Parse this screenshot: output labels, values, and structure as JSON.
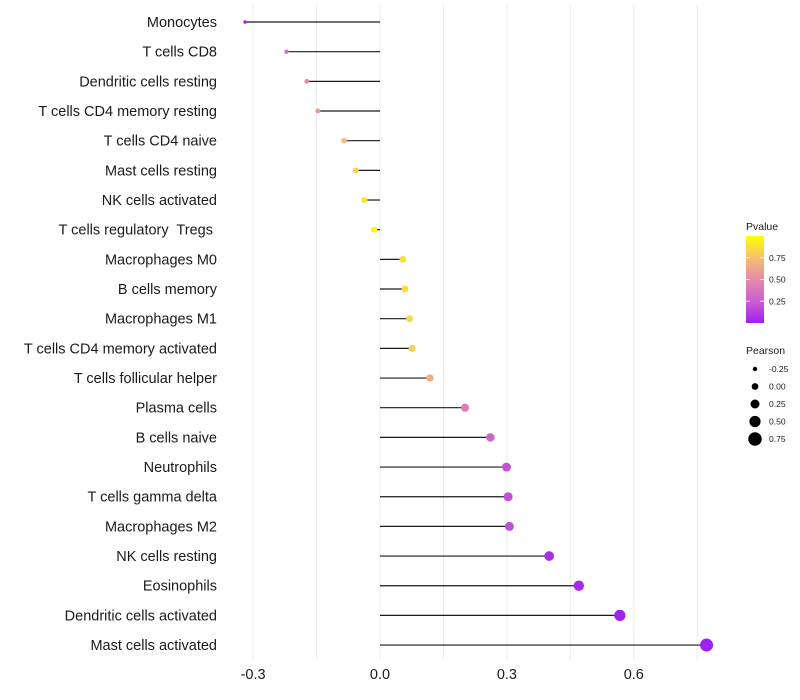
{
  "chart_data": {
    "type": "scatter",
    "subtype": "lollipop",
    "title": "",
    "xlabel": "",
    "ylabel": "",
    "xlim": [
      -0.34,
      0.79
    ],
    "x_ticks": [
      -0.3,
      0.0,
      0.3,
      0.6
    ],
    "x_tick_labels": [
      "-0.3",
      "0.0",
      "0.3",
      "0.6"
    ],
    "grid": true,
    "categories": [
      "Monocytes",
      "T cells CD8",
      "Dendritic cells resting",
      "T cells CD4 memory resting",
      "T cells CD4 naive",
      "Mast cells resting",
      "NK cells activated",
      "T cells regulatory  Tregs ",
      "Macrophages M0",
      "B cells memory",
      "Macrophages M1",
      "T cells CD4 memory activated",
      "T cells follicular helper",
      "Plasma cells",
      "B cells naive",
      "Neutrophils",
      "T cells gamma delta",
      "Macrophages M2",
      "NK cells resting",
      "Eosinophils",
      "Dendritic cells activated",
      "Mast cells activated"
    ],
    "series": [
      {
        "name": "Pearson",
        "values": [
          -0.319,
          -0.221,
          -0.173,
          -0.147,
          -0.085,
          -0.057,
          -0.037,
          -0.014,
          0.054,
          0.059,
          0.07,
          0.076,
          0.118,
          0.201,
          0.261,
          0.299,
          0.303,
          0.306,
          0.4,
          0.47,
          0.567,
          0.772
        ]
      },
      {
        "name": "Pvalue",
        "values": [
          0.04,
          0.35,
          0.5,
          0.58,
          0.72,
          0.82,
          0.9,
          0.97,
          0.88,
          0.86,
          0.84,
          0.82,
          0.66,
          0.42,
          0.3,
          0.2,
          0.2,
          0.19,
          0.06,
          0.03,
          0.01,
          0.0001
        ]
      }
    ],
    "legends": [
      {
        "title": "Pvalue",
        "type": "colorbar",
        "placement": "right",
        "range": [
          0,
          1
        ],
        "ticks": [
          0.25,
          0.5,
          0.75
        ],
        "tick_labels": [
          "0.25",
          "0.50",
          "0.75"
        ],
        "color_low": "#a020f0",
        "color_mid": "#e48aa8",
        "color_high": "#ffff00"
      },
      {
        "title": "Pearson",
        "type": "size",
        "placement": "right",
        "values": [
          -0.25,
          0.0,
          0.25,
          0.5,
          0.75
        ],
        "labels": [
          "-0.25",
          "0.00",
          "0.25",
          "0.50",
          "0.75"
        ]
      }
    ]
  },
  "colors": {
    "stem": "#1a1a1a",
    "grid": "#ebebeb",
    "text": "#1a1a1a",
    "legend_dot": "#000000"
  }
}
